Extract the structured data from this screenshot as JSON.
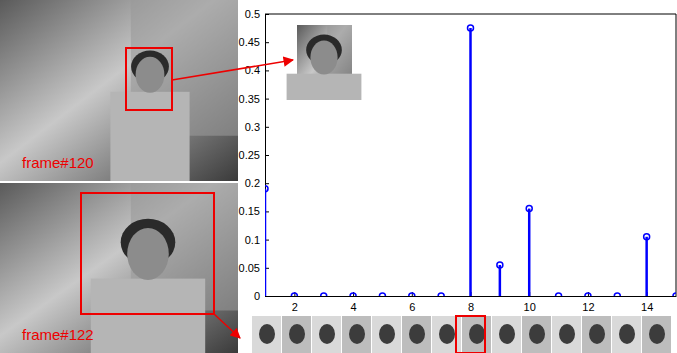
{
  "chart_data": {
    "type": "stem",
    "x": [
      1,
      2,
      3,
      4,
      5,
      6,
      7,
      8,
      9,
      10,
      11,
      12,
      13,
      14,
      15
    ],
    "values": [
      0.19,
      0,
      0,
      0,
      0,
      0,
      0,
      0.475,
      0.055,
      0.155,
      0,
      0,
      0,
      0.105,
      0
    ],
    "color": "#0000ff",
    "marker": "o",
    "xlim": [
      1,
      15
    ],
    "ylim": [
      0,
      0.5
    ],
    "xticks": [
      2,
      4,
      6,
      8,
      10,
      12,
      14
    ],
    "yticks": [
      0,
      0.05,
      0.1,
      0.15,
      0.2,
      0.25,
      0.3,
      0.35,
      0.4,
      0.45,
      0.5
    ],
    "annotations": [
      "frame#120",
      "frame#122"
    ]
  }
}
